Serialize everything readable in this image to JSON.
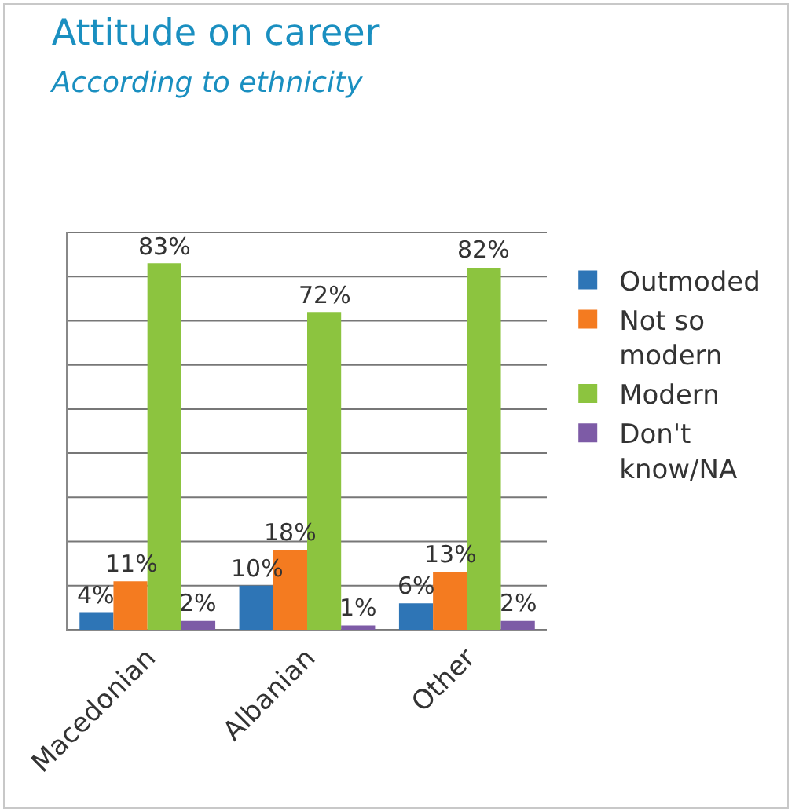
{
  "chart_data": {
    "type": "bar",
    "title": "Attitude on career",
    "subtitle": "According to ethnicity",
    "categories": [
      "Macedonian",
      "Albanian",
      "Other"
    ],
    "series": [
      {
        "name": "Outmoded",
        "color": "#2e75b6",
        "values": [
          4,
          10,
          6
        ],
        "value_labels": [
          "4%",
          "10%",
          "6%"
        ]
      },
      {
        "name": "Not so modern",
        "color": "#f47b20",
        "values": [
          11,
          18,
          13
        ],
        "value_labels": [
          "11%",
          "18%",
          "13%"
        ]
      },
      {
        "name": "Modern",
        "color": "#8cc43f",
        "values": [
          83,
          72,
          82
        ],
        "value_labels": [
          "83%",
          "72%",
          "82%"
        ]
      },
      {
        "name": "Don't know/NA",
        "color": "#7d5ba6",
        "values": [
          2,
          1,
          2
        ],
        "value_labels": [
          "2%",
          "1%",
          "2%"
        ]
      }
    ],
    "ylim": [
      0,
      90
    ],
    "yticks": [
      {
        "value": 0,
        "label": null
      },
      {
        "value": 10,
        "label": null
      },
      {
        "value": 20,
        "label": null
      },
      {
        "value": 30,
        "label": null
      },
      {
        "value": 40,
        "label": null
      },
      {
        "value": 50,
        "label": null
      },
      {
        "value": 60,
        "label": null
      },
      {
        "value": 70,
        "label": null
      },
      {
        "value": 80,
        "label": null
      },
      {
        "value": 90,
        "label": null
      }
    ],
    "grid": "y",
    "legend": "right",
    "tick_labels": "x"
  }
}
